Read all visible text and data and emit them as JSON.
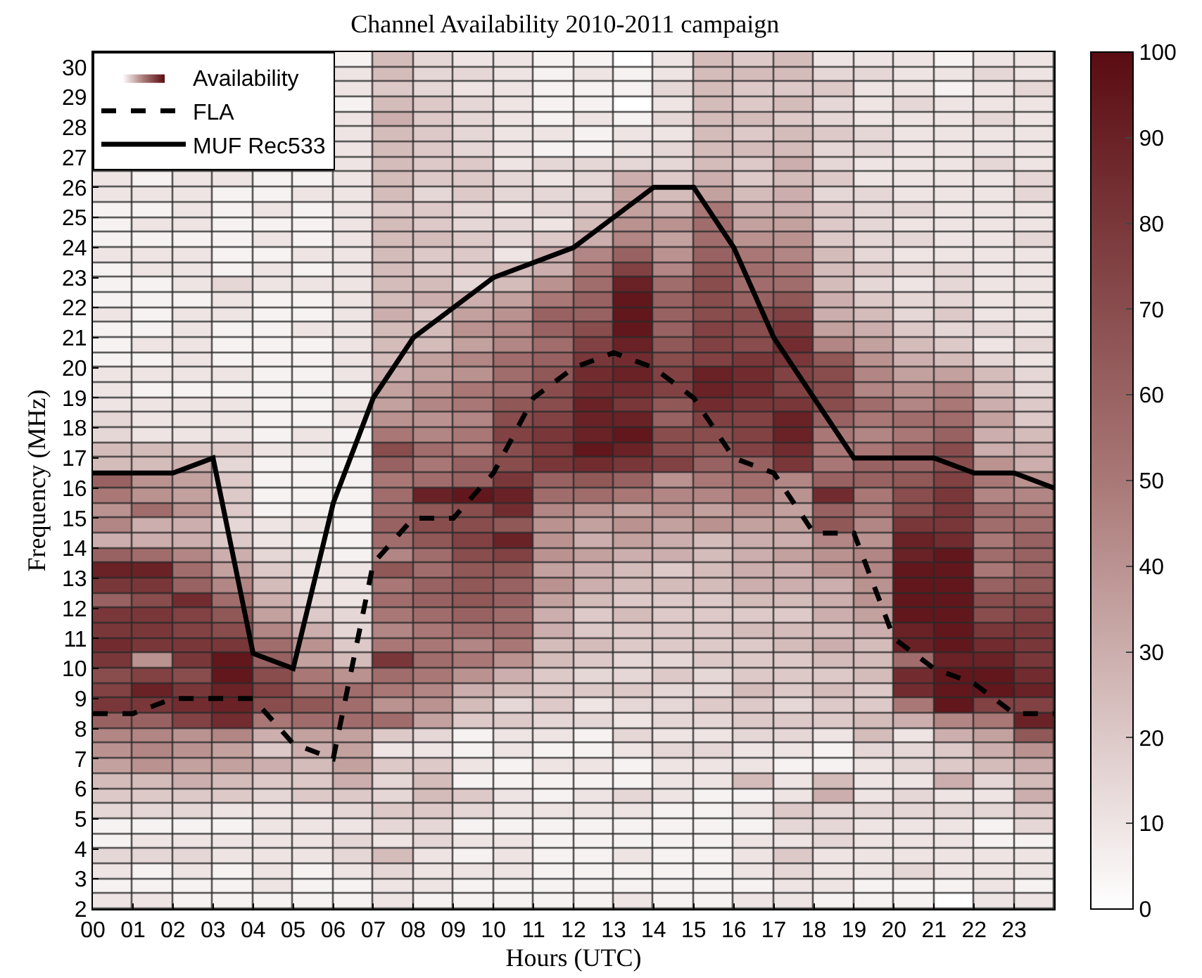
{
  "chart_data": {
    "type": "heatmap",
    "title": "Channel Availability 2010-2011 campaign",
    "xlabel": "Hours (UTC)",
    "ylabel": "Frequency (MHz)",
    "xlim": [
      0,
      24
    ],
    "xticks": [
      {
        "value": 0,
        "label": "00"
      },
      {
        "value": 1,
        "label": "01"
      },
      {
        "value": 2,
        "label": "02"
      },
      {
        "value": 3,
        "label": "03"
      },
      {
        "value": 4,
        "label": "04"
      },
      {
        "value": 5,
        "label": "05"
      },
      {
        "value": 6,
        "label": "06"
      },
      {
        "value": 7,
        "label": "07"
      },
      {
        "value": 8,
        "label": "08"
      },
      {
        "value": 9,
        "label": "09"
      },
      10,
      11,
      12,
      13,
      14,
      15,
      16,
      17,
      18,
      19,
      20,
      21,
      22,
      23
    ],
    "ylim": [
      2,
      30.5
    ],
    "yticks": [
      2,
      3,
      4,
      5,
      6,
      7,
      8,
      9,
      10,
      11,
      12,
      13,
      14,
      15,
      16,
      17,
      18,
      19,
      20,
      21,
      22,
      23,
      24,
      25,
      26,
      27,
      28,
      29,
      30
    ],
    "clim": [
      0,
      100
    ],
    "cticks": [
      0,
      10,
      20,
      30,
      40,
      50,
      60,
      70,
      80,
      90,
      100
    ],
    "colors": [
      "#ffffff",
      "#a97876",
      "#5a0c12"
    ],
    "legend": "top left",
    "series": [
      {
        "name": "Availability",
        "type": "heatmap"
      },
      {
        "name": "FLA",
        "type": "line",
        "line_style": "dashed",
        "color": "#000000",
        "x": [
          0,
          1,
          2,
          3,
          4,
          5,
          6,
          7,
          8,
          9,
          10,
          11,
          12,
          13,
          14,
          15,
          16,
          17,
          18,
          19,
          20,
          21,
          22,
          23,
          24
        ],
        "values": [
          8.5,
          8.5,
          9,
          9,
          9,
          7.5,
          7,
          13.5,
          15,
          15,
          16.5,
          19,
          20,
          20.5,
          20,
          19,
          17,
          16.5,
          14.5,
          14.5,
          11,
          10,
          9.5,
          8.5,
          8.5
        ]
      },
      {
        "name": "MUF Rec533",
        "type": "line",
        "line_style": "solid",
        "color": "#000000",
        "x": [
          0,
          1,
          2,
          3,
          4,
          5,
          6,
          7,
          8,
          9,
          10,
          11,
          12,
          13,
          14,
          15,
          16,
          17,
          18,
          19,
          20,
          21,
          22,
          23,
          24
        ],
        "values": [
          16.5,
          16.5,
          16.5,
          17,
          10.5,
          10,
          15.5,
          19,
          21,
          22,
          23,
          23.5,
          24,
          25,
          26,
          26,
          24,
          21,
          19,
          17,
          17,
          17,
          16.5,
          16.5,
          16
        ]
      }
    ],
    "cells": [
      [
        null,
        null,
        null,
        null,
        null,
        null,
        5,
        25,
        15,
        10,
        10,
        5,
        5,
        0,
        10,
        25,
        20,
        25,
        10,
        10,
        10,
        5,
        10,
        10
      ],
      [
        null,
        null,
        null,
        null,
        null,
        null,
        10,
        25,
        15,
        15,
        10,
        5,
        10,
        5,
        10,
        25,
        25,
        25,
        15,
        15,
        10,
        10,
        15,
        10
      ],
      [
        null,
        null,
        null,
        null,
        null,
        null,
        10,
        20,
        15,
        10,
        10,
        5,
        5,
        5,
        15,
        25,
        20,
        20,
        20,
        10,
        10,
        5,
        10,
        15
      ],
      [
        null,
        null,
        null,
        null,
        null,
        null,
        5,
        25,
        20,
        15,
        10,
        5,
        5,
        0,
        10,
        25,
        20,
        25,
        15,
        10,
        15,
        10,
        10,
        10
      ],
      [
        null,
        null,
        null,
        null,
        null,
        null,
        10,
        30,
        20,
        15,
        10,
        5,
        10,
        5,
        15,
        25,
        25,
        20,
        15,
        10,
        10,
        10,
        15,
        10
      ],
      [
        null,
        null,
        null,
        null,
        null,
        null,
        10,
        25,
        20,
        15,
        10,
        10,
        5,
        10,
        10,
        25,
        20,
        25,
        20,
        15,
        10,
        10,
        10,
        10
      ],
      [
        null,
        null,
        null,
        null,
        null,
        null,
        10,
        25,
        20,
        15,
        10,
        5,
        5,
        10,
        15,
        25,
        25,
        25,
        15,
        15,
        10,
        10,
        10,
        10
      ],
      [
        null,
        null,
        null,
        null,
        null,
        null,
        10,
        25,
        20,
        20,
        10,
        15,
        15,
        15,
        15,
        25,
        20,
        30,
        15,
        10,
        10,
        10,
        15,
        10
      ],
      [
        10,
        5,
        10,
        10,
        5,
        5,
        10,
        25,
        20,
        20,
        15,
        10,
        15,
        30,
        20,
        30,
        20,
        25,
        20,
        10,
        10,
        10,
        10,
        15
      ],
      [
        10,
        10,
        10,
        5,
        5,
        10,
        10,
        25,
        15,
        20,
        15,
        15,
        15,
        35,
        25,
        35,
        25,
        30,
        15,
        15,
        10,
        10,
        10,
        15
      ],
      [
        5,
        5,
        10,
        5,
        10,
        5,
        10,
        20,
        20,
        15,
        10,
        15,
        20,
        35,
        30,
        50,
        30,
        30,
        20,
        15,
        15,
        10,
        10,
        10
      ],
      [
        5,
        10,
        10,
        5,
        5,
        5,
        10,
        25,
        20,
        15,
        15,
        10,
        25,
        40,
        40,
        55,
        35,
        35,
        20,
        15,
        10,
        10,
        10,
        10
      ],
      [
        5,
        5,
        5,
        5,
        10,
        5,
        10,
        25,
        25,
        20,
        15,
        20,
        30,
        45,
        35,
        55,
        40,
        40,
        20,
        15,
        15,
        10,
        10,
        15
      ],
      [
        10,
        10,
        10,
        5,
        5,
        10,
        10,
        25,
        20,
        20,
        10,
        30,
        45,
        60,
        40,
        60,
        50,
        45,
        25,
        15,
        10,
        10,
        10,
        10
      ],
      [
        5,
        10,
        10,
        5,
        10,
        5,
        10,
        25,
        20,
        20,
        25,
        30,
        50,
        75,
        45,
        65,
        55,
        50,
        25,
        20,
        15,
        15,
        10,
        10
      ],
      [
        5,
        5,
        10,
        15,
        10,
        10,
        10,
        25,
        25,
        15,
        25,
        40,
        55,
        90,
        55,
        70,
        55,
        55,
        25,
        15,
        10,
        15,
        10,
        10
      ],
      [
        5,
        5,
        5,
        10,
        5,
        5,
        10,
        25,
        30,
        30,
        35,
        50,
        60,
        95,
        60,
        70,
        60,
        65,
        30,
        20,
        15,
        15,
        10,
        10
      ],
      [
        10,
        5,
        10,
        10,
        5,
        5,
        10,
        30,
        20,
        35,
        40,
        60,
        60,
        95,
        60,
        70,
        70,
        75,
        30,
        25,
        15,
        20,
        10,
        10
      ],
      [
        5,
        5,
        10,
        5,
        5,
        10,
        10,
        25,
        25,
        40,
        45,
        60,
        70,
        95,
        60,
        75,
        70,
        80,
        35,
        30,
        20,
        15,
        15,
        10
      ],
      [
        5,
        10,
        10,
        5,
        5,
        5,
        10,
        25,
        25,
        35,
        45,
        55,
        75,
        90,
        65,
        75,
        70,
        85,
        45,
        35,
        25,
        20,
        10,
        15
      ],
      [
        5,
        5,
        10,
        5,
        5,
        5,
        10,
        25,
        35,
        45,
        55,
        60,
        80,
        85,
        70,
        75,
        80,
        80,
        65,
        40,
        30,
        25,
        15,
        10
      ],
      [
        10,
        10,
        10,
        10,
        5,
        5,
        10,
        30,
        35,
        40,
        55,
        65,
        85,
        90,
        75,
        90,
        85,
        75,
        70,
        45,
        35,
        35,
        25,
        15
      ],
      [
        10,
        5,
        5,
        5,
        5,
        5,
        5,
        35,
        40,
        50,
        55,
        70,
        85,
        85,
        75,
        90,
        85,
        75,
        70,
        45,
        40,
        45,
        25,
        15
      ],
      [
        10,
        10,
        10,
        10,
        5,
        5,
        10,
        35,
        45,
        50,
        65,
        70,
        90,
        80,
        65,
        85,
        80,
        80,
        70,
        55,
        45,
        50,
        30,
        20
      ],
      [
        15,
        10,
        10,
        10,
        5,
        5,
        10,
        40,
        40,
        45,
        70,
        75,
        90,
        90,
        60,
        75,
        75,
        90,
        60,
        50,
        55,
        55,
        35,
        20
      ],
      [
        15,
        10,
        10,
        10,
        5,
        10,
        5,
        50,
        45,
        50,
        75,
        80,
        90,
        95,
        70,
        70,
        75,
        90,
        50,
        45,
        50,
        60,
        30,
        25
      ],
      [
        25,
        25,
        20,
        20,
        10,
        10,
        5,
        70,
        55,
        50,
        70,
        80,
        95,
        90,
        70,
        65,
        75,
        85,
        50,
        50,
        60,
        70,
        30,
        30
      ],
      [
        25,
        25,
        30,
        15,
        5,
        5,
        5,
        60,
        50,
        60,
        70,
        80,
        85,
        80,
        75,
        60,
        60,
        80,
        50,
        60,
        60,
        70,
        40,
        30
      ],
      [
        60,
        40,
        35,
        20,
        5,
        5,
        5,
        50,
        55,
        60,
        80,
        60,
        65,
        60,
        40,
        50,
        55,
        45,
        60,
        60,
        65,
        75,
        50,
        40
      ],
      [
        50,
        40,
        35,
        20,
        5,
        5,
        5,
        55,
        90,
        95,
        90,
        55,
        55,
        50,
        45,
        45,
        50,
        40,
        85,
        50,
        70,
        80,
        45,
        45
      ],
      [
        40,
        55,
        40,
        20,
        5,
        5,
        5,
        55,
        65,
        70,
        85,
        45,
        40,
        35,
        40,
        35,
        40,
        35,
        60,
        50,
        70,
        80,
        55,
        50
      ],
      [
        45,
        30,
        30,
        15,
        10,
        10,
        5,
        60,
        70,
        70,
        65,
        40,
        35,
        40,
        35,
        40,
        35,
        35,
        65,
        45,
        80,
        80,
        55,
        55
      ],
      [
        30,
        30,
        30,
        20,
        10,
        5,
        5,
        55,
        65,
        75,
        90,
        40,
        30,
        35,
        30,
        25,
        30,
        30,
        45,
        40,
        90,
        85,
        50,
        60
      ],
      [
        60,
        55,
        45,
        30,
        15,
        10,
        5,
        45,
        55,
        70,
        75,
        40,
        35,
        30,
        30,
        25,
        30,
        35,
        40,
        45,
        90,
        95,
        55,
        60
      ],
      [
        90,
        90,
        55,
        35,
        20,
        10,
        10,
        65,
        55,
        65,
        65,
        35,
        30,
        25,
        20,
        25,
        30,
        30,
        40,
        45,
        95,
        95,
        50,
        60
      ],
      [
        80,
        80,
        60,
        45,
        25,
        10,
        10,
        50,
        60,
        65,
        60,
        40,
        30,
        25,
        25,
        25,
        30,
        30,
        30,
        40,
        95,
        95,
        60,
        65
      ],
      [
        60,
        70,
        85,
        55,
        30,
        15,
        10,
        55,
        60,
        65,
        60,
        35,
        25,
        20,
        20,
        20,
        25,
        25,
        30,
        40,
        95,
        95,
        70,
        70
      ],
      [
        80,
        80,
        75,
        65,
        35,
        20,
        15,
        50,
        55,
        60,
        55,
        30,
        20,
        25,
        20,
        20,
        20,
        20,
        30,
        35,
        95,
        95,
        70,
        75
      ],
      [
        80,
        80,
        75,
        70,
        45,
        30,
        15,
        45,
        50,
        55,
        55,
        30,
        20,
        20,
        20,
        20,
        25,
        25,
        25,
        30,
        90,
        95,
        80,
        80
      ],
      [
        85,
        80,
        80,
        80,
        55,
        40,
        20,
        50,
        50,
        45,
        50,
        25,
        25,
        20,
        20,
        20,
        20,
        25,
        30,
        25,
        90,
        95,
        85,
        80
      ],
      [
        80,
        40,
        80,
        95,
        60,
        35,
        25,
        80,
        55,
        50,
        40,
        25,
        20,
        15,
        15,
        20,
        20,
        20,
        25,
        25,
        55,
        90,
        90,
        80
      ],
      [
        70,
        75,
        70,
        95,
        70,
        50,
        40,
        55,
        50,
        40,
        30,
        20,
        15,
        15,
        20,
        15,
        20,
        20,
        20,
        25,
        85,
        95,
        95,
        85
      ],
      [
        75,
        90,
        80,
        90,
        75,
        55,
        55,
        50,
        45,
        30,
        25,
        20,
        20,
        20,
        15,
        15,
        25,
        20,
        25,
        20,
        85,
        95,
        95,
        90
      ],
      [
        80,
        80,
        85,
        90,
        70,
        65,
        55,
        40,
        40,
        25,
        15,
        20,
        10,
        15,
        15,
        20,
        20,
        15,
        20,
        20,
        50,
        95,
        75,
        75
      ],
      [
        60,
        60,
        75,
        85,
        50,
        55,
        55,
        55,
        35,
        20,
        20,
        15,
        15,
        10,
        15,
        15,
        20,
        20,
        20,
        25,
        30,
        45,
        50,
        90
      ],
      [
        45,
        45,
        40,
        45,
        30,
        35,
        35,
        20,
        15,
        5,
        10,
        10,
        5,
        15,
        10,
        10,
        15,
        15,
        10,
        25,
        10,
        30,
        35,
        65
      ],
      [
        40,
        45,
        40,
        35,
        20,
        30,
        35,
        10,
        10,
        5,
        10,
        5,
        5,
        10,
        15,
        15,
        10,
        10,
        5,
        15,
        15,
        20,
        30,
        40
      ],
      [
        35,
        40,
        35,
        35,
        30,
        25,
        35,
        20,
        20,
        10,
        5,
        10,
        10,
        5,
        10,
        10,
        10,
        5,
        5,
        10,
        15,
        20,
        25,
        30
      ],
      [
        25,
        25,
        30,
        25,
        20,
        20,
        30,
        15,
        25,
        5,
        5,
        5,
        5,
        5,
        10,
        10,
        25,
        10,
        25,
        10,
        10,
        30,
        15,
        25
      ],
      [
        20,
        20,
        20,
        20,
        15,
        20,
        20,
        15,
        25,
        20,
        10,
        5,
        10,
        15,
        10,
        5,
        5,
        10,
        30,
        10,
        15,
        10,
        10,
        30
      ],
      [
        15,
        15,
        15,
        10,
        10,
        10,
        15,
        20,
        20,
        15,
        10,
        10,
        10,
        10,
        5,
        5,
        10,
        20,
        15,
        15,
        15,
        15,
        15,
        20
      ],
      [
        5,
        5,
        5,
        5,
        10,
        10,
        10,
        15,
        15,
        5,
        5,
        5,
        5,
        5,
        5,
        5,
        5,
        15,
        15,
        10,
        10,
        10,
        5,
        15
      ],
      [
        5,
        10,
        10,
        10,
        10,
        10,
        15,
        10,
        15,
        10,
        10,
        5,
        5,
        5,
        5,
        5,
        10,
        10,
        15,
        10,
        10,
        10,
        5,
        5
      ],
      [
        15,
        15,
        15,
        10,
        10,
        10,
        15,
        25,
        10,
        5,
        10,
        5,
        5,
        10,
        5,
        5,
        10,
        20,
        10,
        10,
        10,
        10,
        10,
        10
      ],
      [
        10,
        5,
        10,
        5,
        10,
        5,
        10,
        15,
        10,
        10,
        10,
        5,
        5,
        5,
        5,
        5,
        10,
        15,
        10,
        10,
        15,
        10,
        10,
        10
      ],
      [
        5,
        5,
        5,
        5,
        10,
        5,
        5,
        10,
        10,
        5,
        5,
        5,
        5,
        5,
        5,
        5,
        5,
        10,
        10,
        5,
        5,
        5,
        10,
        5
      ],
      [
        10,
        10,
        5,
        5,
        5,
        5,
        5,
        10,
        5,
        5,
        5,
        5,
        5,
        10,
        5,
        5,
        10,
        10,
        5,
        5,
        5,
        0,
        10,
        10
      ]
    ]
  }
}
